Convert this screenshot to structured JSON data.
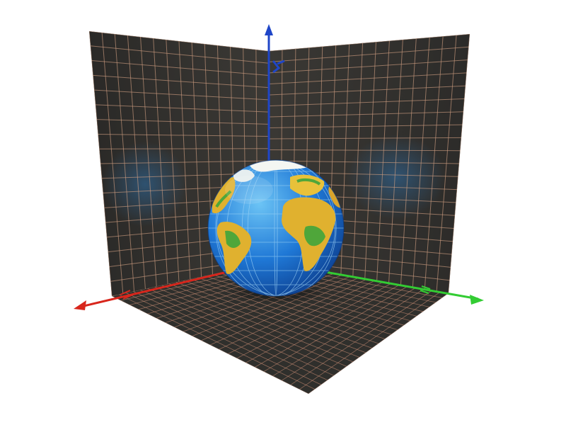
{
  "scene": {
    "background": "#ffffff",
    "walls": {
      "fill_dark": "#2b2a28",
      "fill_mid": "#3a3935",
      "grid_color": "#c99a7e"
    },
    "floor": {
      "fill": "#2f2f2c",
      "grid_color": "#c48a72"
    },
    "axes": [
      {
        "name": "x-axis",
        "color": "#d8261c"
      },
      {
        "name": "y-axis",
        "color": "#33cc33"
      },
      {
        "name": "z-axis",
        "color": "#1f46c8"
      }
    ],
    "globe": {
      "ocean": "#1f78d6",
      "ocean_light": "#57b6f2",
      "land": "#e0b12f",
      "land_green": "#4fa63a",
      "ice": "#f4f6f2",
      "graticule": "#9fd3f5"
    }
  }
}
